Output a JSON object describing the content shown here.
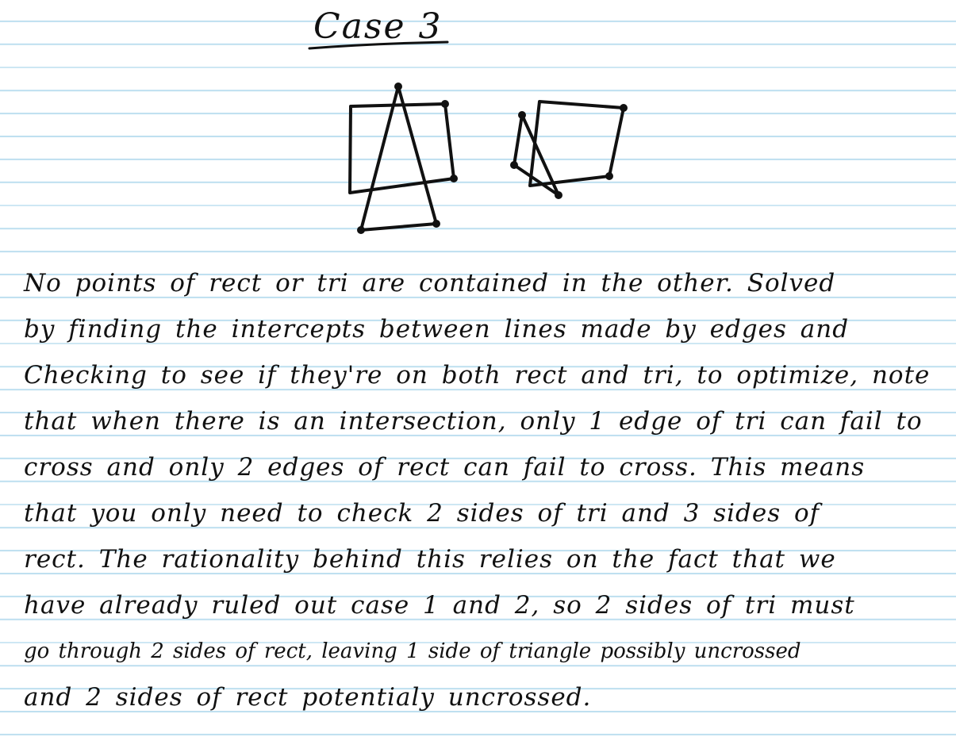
{
  "title": "Case 3",
  "body_lines": [
    "No points of rect or tri are contained in the other. Solved",
    "by finding the intercepts between lines made by edges and",
    "Checking to see if they're on both rect and tri, to optimize, note",
    "that when there is an intersection, only 1 edge of tri can fail to",
    "cross and only 2 edges of rect can fail to cross. This means",
    "that you only need to check 2 sides of tri and 3 sides of",
    "rect. The rationality behind this relies on the fact that we",
    "have already ruled out case 1 and 2, so 2 sides of tri must",
    "go through 2 sides of rect, leaving 1 side of triangle possibly uncrossed",
    "and 2 sides of rect potentialy uncrossed."
  ],
  "colors": {
    "ink": "#111111",
    "rule": "#bfe0f0",
    "paper": "#ffffff"
  }
}
